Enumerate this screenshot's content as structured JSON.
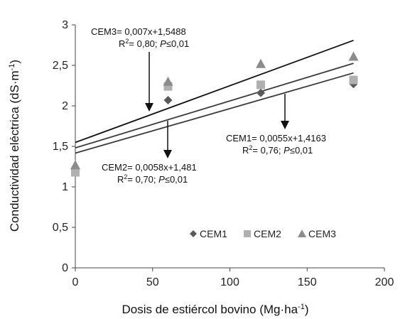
{
  "chart_data": {
    "type": "scatter",
    "xlabel": "Dosis de estiércol bovino (Mg·ha",
    "xlabel_sup": "-1",
    "xlabel_end": ")",
    "ylabel": "Conductividad eléctrica (dS·m",
    "ylabel_sup": "-1",
    "ylabel_end": ")",
    "xlim": [
      0,
      200
    ],
    "ylim": [
      0,
      3
    ],
    "x_ticks": [
      0,
      50,
      100,
      150,
      200
    ],
    "x_tick_labels": [
      "0",
      "50",
      "100",
      "150",
      "200"
    ],
    "y_ticks": [
      0,
      0.5,
      1,
      1.5,
      2,
      2.5,
      3
    ],
    "y_tick_labels": [
      "0",
      "0,5",
      "1",
      "1,5",
      "2",
      "2,5",
      "3"
    ],
    "grid": false,
    "legend_position": "bottom-right",
    "series": [
      {
        "name": "CEM1",
        "marker": "diamond",
        "color": "#595959",
        "x": [
          0,
          60,
          120,
          180
        ],
        "y": [
          1.22,
          2.07,
          2.16,
          2.27
        ],
        "trend": {
          "slope": 0.0055,
          "intercept": 1.4163,
          "color": "#3a3a3a"
        }
      },
      {
        "name": "CEM2",
        "marker": "square",
        "color": "#b0b0b0",
        "x": [
          0,
          60,
          120,
          180
        ],
        "y": [
          1.18,
          2.24,
          2.26,
          2.32
        ],
        "trend": {
          "slope": 0.0058,
          "intercept": 1.481,
          "color": "#3a3a3a"
        }
      },
      {
        "name": "CEM3",
        "marker": "triangle",
        "color": "#8c8c8c",
        "x": [
          0,
          60,
          120,
          180
        ],
        "y": [
          1.27,
          2.3,
          2.52,
          2.61
        ],
        "trend": {
          "slope": 0.007,
          "intercept": 1.5488,
          "color": "#111111"
        }
      }
    ],
    "annotations": {
      "cem3": {
        "line1": "CEM3= 0,007x+1,5488",
        "r2_prefix": "R",
        "r2_sup": "2",
        "r2_value": "= 0,80; ",
        "p_italic": "P",
        "p_rest": "≤0,01"
      },
      "cem2": {
        "line1": "CEM2= 0,0058x+1,481",
        "r2_prefix": "R",
        "r2_sup": "2",
        "r2_value": "= 0,70; ",
        "p_italic": "P",
        "p_rest": "≤0,01"
      },
      "cem1": {
        "line1": "CEM1= 0,0055x+1,4163",
        "r2_prefix": "R",
        "r2_sup": "2",
        "r2_value": "= 0,76; ",
        "p_italic": "P",
        "p_rest": "≤0,01"
      }
    }
  }
}
